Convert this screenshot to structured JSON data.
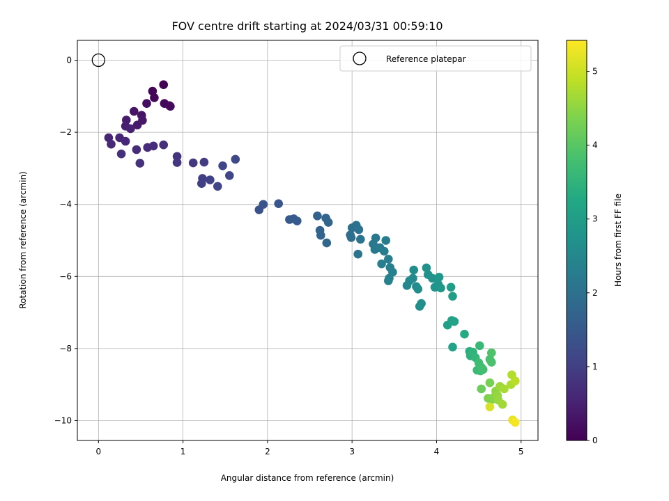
{
  "chart_data": {
    "type": "scatter",
    "title": "FOV centre drift starting at 2024/03/31 00:59:10",
    "xlabel": "Angular distance from reference (arcmin)",
    "ylabel": "Rotation from reference (arcmin)",
    "colorbar_label": "Hours from first FF file",
    "xlim": [
      -0.25,
      5.2
    ],
    "ylim": [
      -10.55,
      0.55
    ],
    "clim": [
      0,
      5.42
    ],
    "xticks": [
      0,
      1,
      2,
      3,
      4,
      5
    ],
    "yticks": [
      0,
      -2,
      -4,
      -6,
      -8,
      -10
    ],
    "cticks": [
      0,
      1,
      2,
      3,
      4,
      5
    ],
    "xtick_labels": [
      "0",
      "1",
      "2",
      "3",
      "4",
      "5"
    ],
    "ytick_labels": [
      "0",
      "−2",
      "−4",
      "−6",
      "−8",
      "−10"
    ],
    "ctick_labels": [
      "0",
      "1",
      "2",
      "3",
      "4",
      "5"
    ],
    "grid": true,
    "legend_position": "top-right",
    "colormap": "viridis",
    "reference": {
      "name": "Reference platepar",
      "x": 0,
      "y": 0
    },
    "points": [
      [
        0.77,
        -0.68,
        0.02
      ],
      [
        0.64,
        -0.86,
        0.05
      ],
      [
        0.66,
        -1.04,
        0.08
      ],
      [
        0.78,
        -1.2,
        0.1
      ],
      [
        0.84,
        -1.26,
        0.12
      ],
      [
        0.85,
        -1.28,
        0.14
      ],
      [
        0.57,
        -1.2,
        0.2
      ],
      [
        0.42,
        -1.42,
        0.28
      ],
      [
        0.51,
        -1.53,
        0.3
      ],
      [
        0.52,
        -1.67,
        0.35
      ],
      [
        0.46,
        -1.8,
        0.4
      ],
      [
        0.33,
        -1.66,
        0.42
      ],
      [
        0.32,
        -1.83,
        0.45
      ],
      [
        0.38,
        -1.9,
        0.5
      ],
      [
        0.12,
        -2.15,
        0.55
      ],
      [
        0.25,
        -2.15,
        0.58
      ],
      [
        0.32,
        -2.25,
        0.6
      ],
      [
        0.15,
        -2.33,
        0.62
      ],
      [
        0.45,
        -2.48,
        0.66
      ],
      [
        0.58,
        -2.42,
        0.68
      ],
      [
        0.65,
        -2.38,
        0.7
      ],
      [
        0.77,
        -2.35,
        0.72
      ],
      [
        0.27,
        -2.6,
        0.74
      ],
      [
        0.49,
        -2.86,
        0.76
      ],
      [
        0.93,
        -2.67,
        0.82
      ],
      [
        0.93,
        -2.84,
        0.85
      ],
      [
        1.12,
        -2.85,
        0.9
      ],
      [
        1.25,
        -2.83,
        0.95
      ],
      [
        1.23,
        -3.28,
        1.0
      ],
      [
        1.22,
        -3.42,
        1.02
      ],
      [
        1.32,
        -3.32,
        1.05
      ],
      [
        1.41,
        -3.5,
        1.08
      ],
      [
        1.47,
        -2.93,
        1.12
      ],
      [
        1.55,
        -3.2,
        1.15
      ],
      [
        1.62,
        -2.75,
        1.18
      ],
      [
        1.9,
        -4.15,
        1.35
      ],
      [
        1.95,
        -4.0,
        1.38
      ],
      [
        2.13,
        -3.98,
        1.42
      ],
      [
        2.26,
        -4.42,
        1.5
      ],
      [
        2.31,
        -4.4,
        1.52
      ],
      [
        2.35,
        -4.46,
        1.55
      ],
      [
        2.59,
        -4.32,
        1.7
      ],
      [
        2.62,
        -4.72,
        1.72
      ],
      [
        2.63,
        -4.86,
        1.74
      ],
      [
        2.69,
        -4.38,
        1.76
      ],
      [
        2.72,
        -4.5,
        1.78
      ],
      [
        2.7,
        -5.07,
        1.8
      ],
      [
        2.98,
        -4.85,
        1.95
      ],
      [
        2.99,
        -4.92,
        1.97
      ],
      [
        3.0,
        -4.65,
        2.0
      ],
      [
        3.05,
        -4.58,
        2.02
      ],
      [
        3.08,
        -4.7,
        2.04
      ],
      [
        3.1,
        -4.97,
        2.06
      ],
      [
        3.07,
        -5.38,
        2.08
      ],
      [
        3.25,
        -5.1,
        2.15
      ],
      [
        3.28,
        -4.93,
        2.17
      ],
      [
        3.27,
        -5.25,
        2.2
      ],
      [
        3.33,
        -5.2,
        2.22
      ],
      [
        3.38,
        -5.3,
        2.24
      ],
      [
        3.4,
        -5.0,
        2.26
      ],
      [
        3.35,
        -5.65,
        2.28
      ],
      [
        3.43,
        -5.52,
        2.3
      ],
      [
        3.45,
        -5.75,
        2.32
      ],
      [
        3.48,
        -5.88,
        2.34
      ],
      [
        3.43,
        -6.12,
        2.36
      ],
      [
        3.44,
        -6.05,
        2.38
      ],
      [
        3.65,
        -6.25,
        2.5
      ],
      [
        3.68,
        -6.12,
        2.52
      ],
      [
        3.72,
        -6.05,
        2.55
      ],
      [
        3.76,
        -6.28,
        2.57
      ],
      [
        3.78,
        -6.35,
        2.6
      ],
      [
        3.73,
        -5.82,
        2.62
      ],
      [
        3.8,
        -6.83,
        2.65
      ],
      [
        3.82,
        -6.75,
        2.67
      ],
      [
        3.88,
        -5.76,
        2.7
      ],
      [
        3.9,
        -5.95,
        2.72
      ],
      [
        3.95,
        -6.05,
        2.75
      ],
      [
        3.98,
        -6.3,
        2.77
      ],
      [
        4.02,
        -6.22,
        2.8
      ],
      [
        4.03,
        -6.02,
        2.82
      ],
      [
        4.05,
        -6.32,
        2.84
      ],
      [
        4.17,
        -6.3,
        3.0
      ],
      [
        4.19,
        -6.55,
        3.02
      ],
      [
        4.13,
        -7.35,
        3.05
      ],
      [
        4.18,
        -7.22,
        3.08
      ],
      [
        4.21,
        -7.25,
        3.1
      ],
      [
        4.19,
        -7.96,
        3.12
      ],
      [
        4.33,
        -7.6,
        3.3
      ],
      [
        4.39,
        -8.08,
        3.4
      ],
      [
        4.4,
        -8.2,
        3.45
      ],
      [
        4.43,
        -8.1,
        3.5
      ],
      [
        4.46,
        -8.25,
        3.55
      ],
      [
        4.51,
        -7.92,
        3.6
      ],
      [
        4.48,
        -8.6,
        3.65
      ],
      [
        4.52,
        -8.62,
        3.7
      ],
      [
        4.5,
        -8.4,
        3.72
      ],
      [
        4.53,
        -8.52,
        3.75
      ],
      [
        4.55,
        -8.58,
        3.78
      ],
      [
        4.63,
        -8.3,
        3.82
      ],
      [
        4.65,
        -8.38,
        3.85
      ],
      [
        4.65,
        -8.12,
        3.88
      ],
      [
        4.53,
        -9.12,
        4.2
      ],
      [
        4.63,
        -8.95,
        4.3
      ],
      [
        4.61,
        -9.38,
        4.35
      ],
      [
        4.65,
        -9.42,
        4.4
      ],
      [
        4.68,
        -9.35,
        4.45
      ],
      [
        4.7,
        -9.18,
        4.5
      ],
      [
        4.72,
        -9.3,
        4.55
      ],
      [
        4.73,
        -9.43,
        4.58
      ],
      [
        4.75,
        -9.05,
        4.62
      ],
      [
        4.78,
        -9.55,
        4.66
      ],
      [
        4.8,
        -9.12,
        4.7
      ],
      [
        4.88,
        -9.0,
        4.75
      ],
      [
        4.89,
        -8.73,
        4.8
      ],
      [
        4.93,
        -8.9,
        4.85
      ],
      [
        4.63,
        -9.62,
        5.1
      ],
      [
        4.9,
        -9.98,
        5.25
      ],
      [
        4.93,
        -10.05,
        5.35
      ]
    ]
  }
}
